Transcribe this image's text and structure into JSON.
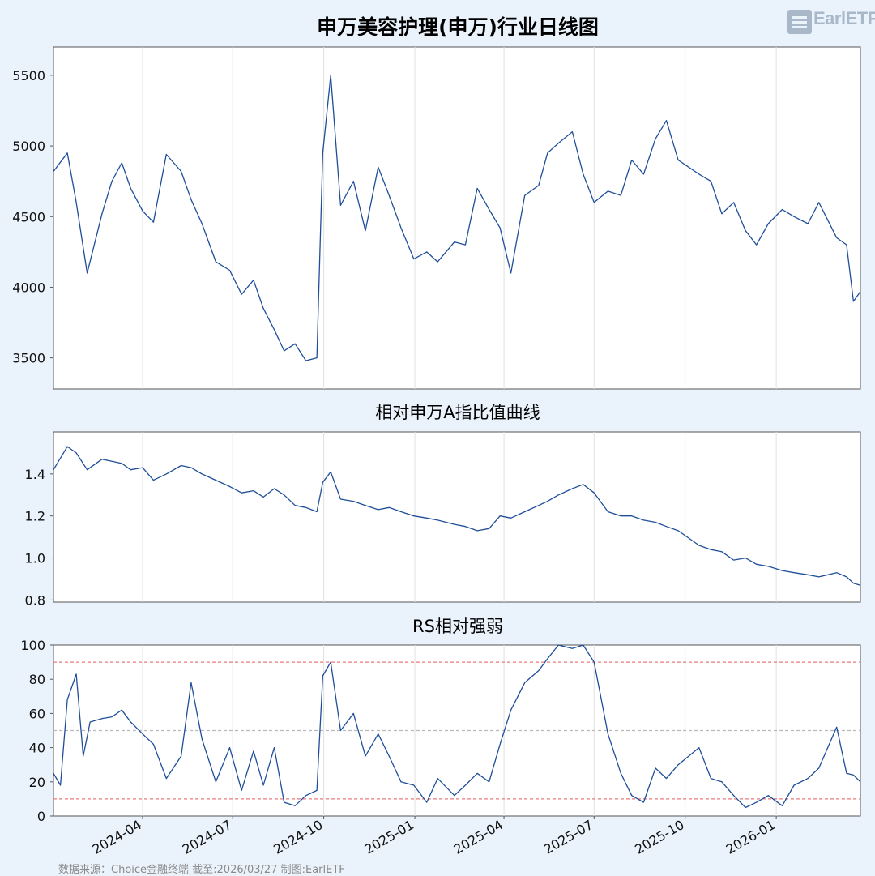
{
  "footer": "数据来源：Choice金融终端 截至:2026/03/27 制图:EarlETF",
  "logo_text": "EarlETF",
  "chart_data": [
    {
      "type": "line",
      "title": "申万美容护理(申万)行业日线图",
      "color": "#1f4e99",
      "ylim": [
        3280,
        5700
      ],
      "yticks": [
        3500,
        4000,
        4500,
        5000,
        5500
      ],
      "x": [
        "2024-01-02",
        "2024-01-16",
        "2024-01-25",
        "2024-02-05",
        "2024-02-20",
        "2024-03-01",
        "2024-03-11",
        "2024-03-20",
        "2024-04-01",
        "2024-04-12",
        "2024-04-25",
        "2024-05-10",
        "2024-05-20",
        "2024-05-31",
        "2024-06-14",
        "2024-06-28",
        "2024-07-10",
        "2024-07-22",
        "2024-08-01",
        "2024-08-12",
        "2024-08-22",
        "2024-09-02",
        "2024-09-13",
        "2024-09-24",
        "2024-09-30",
        "2024-10-08",
        "2024-10-18",
        "2024-10-31",
        "2024-11-12",
        "2024-11-25",
        "2024-12-06",
        "2024-12-18",
        "2024-12-31",
        "2025-01-13",
        "2025-01-24",
        "2025-02-10",
        "2025-02-21",
        "2025-03-05",
        "2025-03-17",
        "2025-03-28",
        "2025-04-08",
        "2025-04-22",
        "2025-05-06",
        "2025-05-15",
        "2025-05-26",
        "2025-06-09",
        "2025-06-20",
        "2025-07-01",
        "2025-07-15",
        "2025-07-28",
        "2025-08-08",
        "2025-08-20",
        "2025-09-01",
        "2025-09-12",
        "2025-09-24",
        "2025-10-15",
        "2025-10-27",
        "2025-11-07",
        "2025-11-19",
        "2025-12-01",
        "2025-12-12",
        "2025-12-24",
        "2026-01-07",
        "2026-01-19",
        "2026-02-02",
        "2026-02-13",
        "2026-03-03",
        "2026-03-13",
        "2026-03-20",
        "2026-03-27"
      ],
      "values": [
        4820,
        4950,
        4600,
        4100,
        4520,
        4750,
        4880,
        4700,
        4540,
        4460,
        4940,
        4820,
        4620,
        4450,
        4180,
        4120,
        3950,
        4050,
        3850,
        3700,
        3550,
        3600,
        3480,
        3500,
        4950,
        5500,
        4580,
        4750,
        4400,
        4850,
        4650,
        4420,
        4200,
        4250,
        4180,
        4320,
        4300,
        4700,
        4550,
        4420,
        4100,
        4650,
        4720,
        4950,
        5020,
        5100,
        4800,
        4600,
        4680,
        4650,
        4900,
        4800,
        5050,
        5180,
        4900,
        4800,
        4750,
        4520,
        4600,
        4400,
        4300,
        4450,
        4550,
        4500,
        4450,
        4600,
        4350,
        4300,
        3900,
        3970
      ]
    },
    {
      "type": "line",
      "title": "相对申万A指比值曲线",
      "color": "#1f4e99",
      "ylim": [
        0.79,
        1.6
      ],
      "yticks": [
        0.8,
        1.0,
        1.2,
        1.4
      ],
      "x": [
        "2024-01-02",
        "2024-01-16",
        "2024-01-25",
        "2024-02-05",
        "2024-02-20",
        "2024-03-01",
        "2024-03-11",
        "2024-03-20",
        "2024-04-01",
        "2024-04-12",
        "2024-04-25",
        "2024-05-10",
        "2024-05-20",
        "2024-05-31",
        "2024-06-14",
        "2024-06-28",
        "2024-07-10",
        "2024-07-22",
        "2024-08-01",
        "2024-08-12",
        "2024-08-22",
        "2024-09-02",
        "2024-09-13",
        "2024-09-24",
        "2024-09-30",
        "2024-10-08",
        "2024-10-18",
        "2024-10-31",
        "2024-11-12",
        "2024-11-25",
        "2024-12-06",
        "2024-12-18",
        "2024-12-31",
        "2025-01-13",
        "2025-01-24",
        "2025-02-10",
        "2025-02-21",
        "2025-03-05",
        "2025-03-17",
        "2025-03-28",
        "2025-04-08",
        "2025-04-22",
        "2025-05-06",
        "2025-05-15",
        "2025-05-26",
        "2025-06-09",
        "2025-06-20",
        "2025-07-01",
        "2025-07-15",
        "2025-07-28",
        "2025-08-08",
        "2025-08-20",
        "2025-09-01",
        "2025-09-12",
        "2025-09-24",
        "2025-10-15",
        "2025-10-27",
        "2025-11-07",
        "2025-11-19",
        "2025-12-01",
        "2025-12-12",
        "2025-12-24",
        "2026-01-07",
        "2026-01-19",
        "2026-02-02",
        "2026-02-13",
        "2026-03-03",
        "2026-03-13",
        "2026-03-20",
        "2026-03-27"
      ],
      "values": [
        1.42,
        1.53,
        1.5,
        1.42,
        1.47,
        1.46,
        1.45,
        1.42,
        1.43,
        1.37,
        1.4,
        1.44,
        1.43,
        1.4,
        1.37,
        1.34,
        1.31,
        1.32,
        1.29,
        1.33,
        1.3,
        1.25,
        1.24,
        1.22,
        1.36,
        1.41,
        1.28,
        1.27,
        1.25,
        1.23,
        1.24,
        1.22,
        1.2,
        1.19,
        1.18,
        1.16,
        1.15,
        1.13,
        1.14,
        1.2,
        1.19,
        1.22,
        1.25,
        1.27,
        1.3,
        1.33,
        1.35,
        1.31,
        1.22,
        1.2,
        1.2,
        1.18,
        1.17,
        1.15,
        1.13,
        1.06,
        1.04,
        1.03,
        0.99,
        1.0,
        0.97,
        0.96,
        0.94,
        0.93,
        0.92,
        0.91,
        0.93,
        0.91,
        0.88,
        0.87
      ]
    },
    {
      "type": "line",
      "title": "RS相对强弱",
      "color": "#1f4e99",
      "ylim": [
        0,
        100
      ],
      "yticks": [
        0,
        20,
        40,
        60,
        80,
        100
      ],
      "reference_lines": [
        {
          "value": 90,
          "color": "#e87a7a"
        },
        {
          "value": 50,
          "color": "#b9b9b9"
        },
        {
          "value": 10,
          "color": "#e87a7a"
        }
      ],
      "xtick_labels": [
        "2024-04",
        "2024-07",
        "2024-10",
        "2025-01",
        "2025-04",
        "2025-07",
        "2025-10",
        "2026-01"
      ],
      "x": [
        "2024-01-02",
        "2024-01-09",
        "2024-01-16",
        "2024-01-25",
        "2024-02-01",
        "2024-02-08",
        "2024-02-20",
        "2024-03-01",
        "2024-03-11",
        "2024-03-20",
        "2024-04-01",
        "2024-04-12",
        "2024-04-25",
        "2024-05-10",
        "2024-05-20",
        "2024-05-31",
        "2024-06-14",
        "2024-06-28",
        "2024-07-10",
        "2024-07-22",
        "2024-08-01",
        "2024-08-12",
        "2024-08-22",
        "2024-09-02",
        "2024-09-13",
        "2024-09-24",
        "2024-09-30",
        "2024-10-08",
        "2024-10-18",
        "2024-10-31",
        "2024-11-12",
        "2024-11-25",
        "2024-12-06",
        "2024-12-18",
        "2024-12-31",
        "2025-01-13",
        "2025-01-24",
        "2025-02-10",
        "2025-02-21",
        "2025-03-05",
        "2025-03-17",
        "2025-03-28",
        "2025-04-08",
        "2025-04-22",
        "2025-05-06",
        "2025-05-15",
        "2025-05-26",
        "2025-06-09",
        "2025-06-20",
        "2025-07-01",
        "2025-07-15",
        "2025-07-28",
        "2025-08-08",
        "2025-08-20",
        "2025-09-01",
        "2025-09-12",
        "2025-09-24",
        "2025-10-15",
        "2025-10-27",
        "2025-11-07",
        "2025-11-19",
        "2025-12-01",
        "2025-12-12",
        "2025-12-24",
        "2026-01-07",
        "2026-01-19",
        "2026-02-02",
        "2026-02-13",
        "2026-03-03",
        "2026-03-13",
        "2026-03-20",
        "2026-03-27"
      ],
      "values": [
        25,
        18,
        68,
        83,
        35,
        55,
        57,
        58,
        62,
        55,
        48,
        42,
        22,
        35,
        78,
        45,
        20,
        40,
        15,
        38,
        18,
        40,
        8,
        6,
        12,
        15,
        82,
        90,
        50,
        60,
        35,
        48,
        35,
        20,
        18,
        8,
        22,
        12,
        18,
        25,
        20,
        42,
        62,
        78,
        85,
        92,
        100,
        98,
        100,
        90,
        48,
        25,
        12,
        8,
        28,
        22,
        30,
        40,
        22,
        20,
        12,
        5,
        8,
        12,
        6,
        18,
        22,
        28,
        52,
        25,
        24,
        20
      ]
    }
  ]
}
